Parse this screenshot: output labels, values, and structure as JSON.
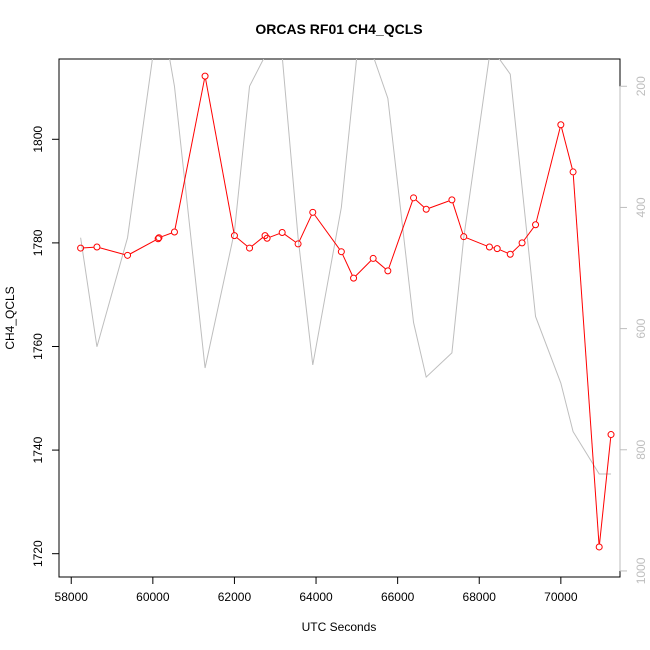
{
  "chart_data": {
    "type": "line",
    "title": "ORCAS RF01 CH4_QCLS",
    "xlabel": "UTC Seconds",
    "ylabel": "CH4_QCLS",
    "xlim": [
      57700,
      71450
    ],
    "ylim": [
      1715.5,
      1815.5
    ],
    "y2lim": [
      1010,
      155
    ],
    "y2_reversed": true,
    "x_ticks": [
      58000,
      60000,
      62000,
      64000,
      66000,
      68000,
      70000
    ],
    "x_tick_labels": [
      "58000",
      "60000",
      "62000",
      "64000",
      "66000",
      "68000",
      "70000"
    ],
    "y_ticks": [
      1720,
      1740,
      1760,
      1780,
      1800
    ],
    "y_tick_labels": [
      "1720",
      "1740",
      "1760",
      "1780",
      "1800"
    ],
    "y2_ticks": [
      200,
      400,
      600,
      800,
      1000
    ],
    "y2_tick_labels": [
      "200",
      "400",
      "600",
      "800",
      "1000"
    ],
    "grid": false,
    "series": [
      {
        "axis": "left",
        "color": "#ff0000",
        "marker": "open-circle",
        "x": [
          58230,
          58630,
          59380,
          60130,
          60150,
          60530,
          61280,
          62000,
          62370,
          62750,
          62800,
          63170,
          63560,
          63920,
          64620,
          64920,
          65400,
          65760,
          66390,
          66700,
          67330,
          67620,
          68250,
          68440,
          68760,
          69050,
          69380,
          70000,
          70300,
          70940,
          71230
        ],
        "y": [
          1779,
          1779.2,
          1777.6,
          1780.8,
          1781,
          1782.1,
          1812.2,
          1781.4,
          1779,
          1781.4,
          1780.9,
          1782,
          1779.8,
          1785.9,
          1778.3,
          1773.2,
          1777,
          1774.6,
          1788.7,
          1786.5,
          1788.3,
          1781.2,
          1779.2,
          1778.9,
          1777.8,
          1780,
          1783.5,
          1802.8,
          1793.7,
          1721.3,
          1743
        ]
      },
      {
        "axis": "right",
        "color": "#bebebe",
        "marker": "none",
        "x": [
          58230,
          58630,
          59380,
          60000,
          60400,
          60530,
          61280,
          62000,
          62370,
          62750,
          63170,
          63560,
          63920,
          64620,
          65000,
          65400,
          65760,
          66390,
          66700,
          67330,
          67620,
          68250,
          68440,
          68760,
          69380,
          70000,
          70300,
          70940,
          71230
        ],
        "y": [
          450,
          630,
          450,
          150,
          150,
          200,
          665,
          440,
          200,
          150,
          150,
          450,
          660,
          400,
          150,
          150,
          220,
          590,
          680,
          640,
          450,
          150,
          150,
          180,
          580,
          690,
          770,
          840,
          840
        ]
      }
    ]
  }
}
